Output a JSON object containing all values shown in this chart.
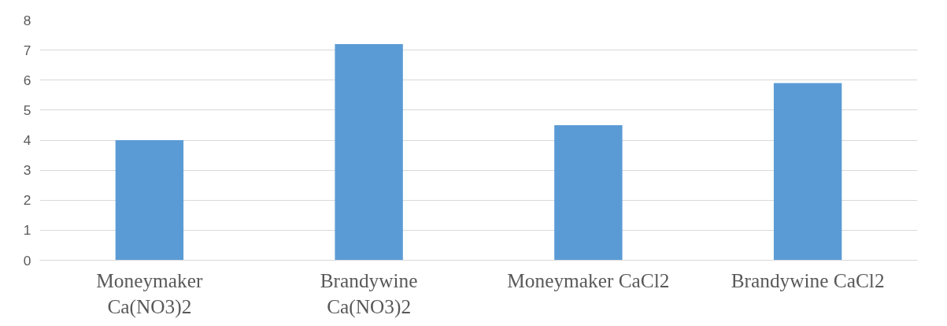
{
  "chart_data": {
    "type": "bar",
    "categories": [
      "Moneymaker Ca(NO3)2",
      "Brandywine Ca(NO3)2",
      "Moneymaker CaCl2",
      "Brandywine CaCl2"
    ],
    "values": [
      4.0,
      7.2,
      4.5,
      5.9
    ],
    "color": "#5b9bd5",
    "ylim": [
      0,
      8
    ],
    "yticks": [
      0,
      1,
      2,
      3,
      4,
      5,
      6,
      7,
      8
    ],
    "grid": "y"
  }
}
